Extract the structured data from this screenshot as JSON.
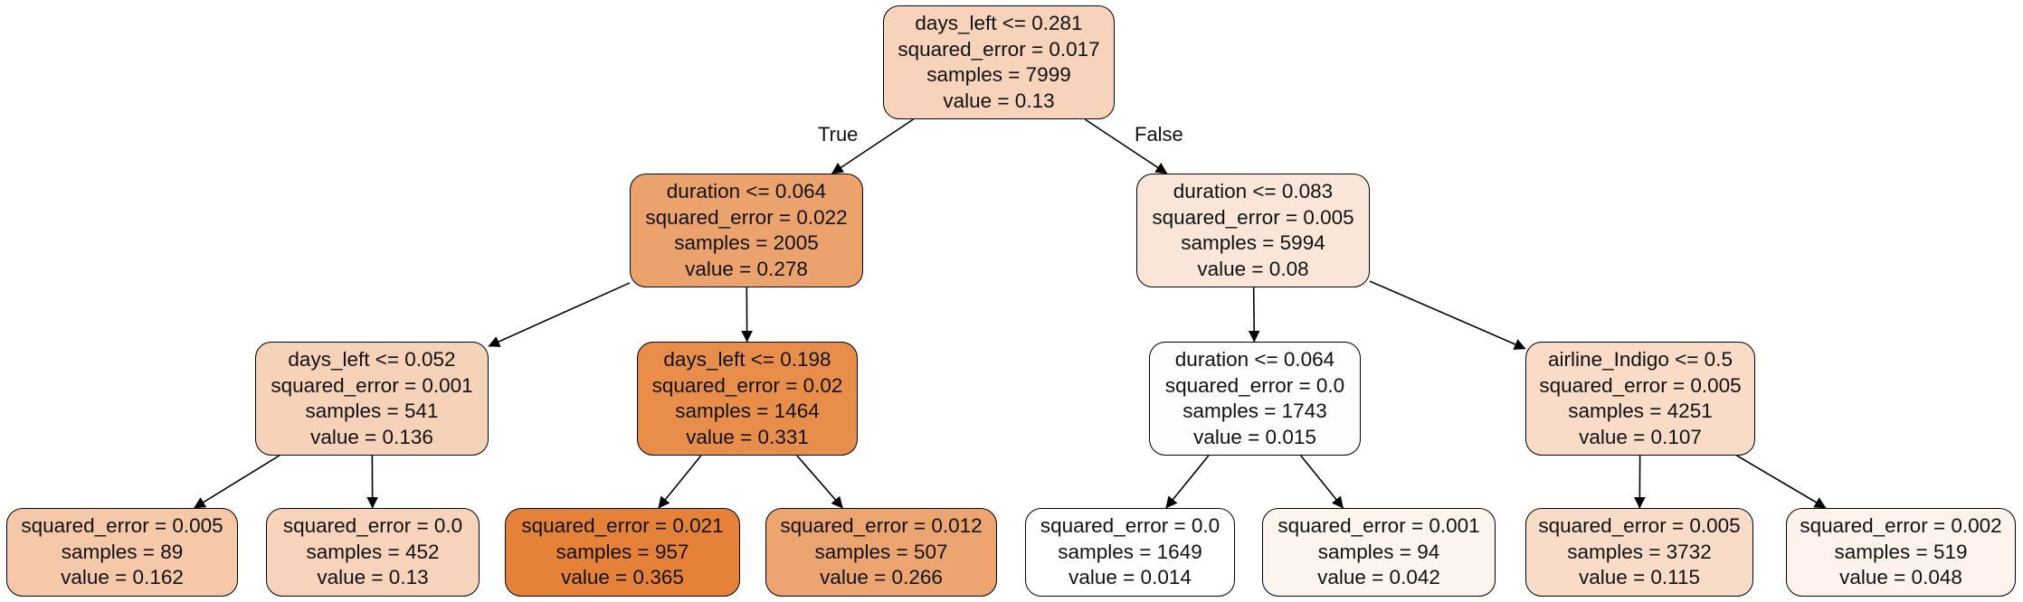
{
  "nodes": [
    {
      "id": "n0",
      "fill": "#f6d3ba",
      "lines": [
        "days_left <= 0.281",
        "squared_error = 0.017",
        "samples = 7999",
        "value = 0.13"
      ]
    },
    {
      "id": "n1",
      "fill": "#eca26c",
      "lines": [
        "duration <= 0.064",
        "squared_error = 0.022",
        "samples = 2005",
        "value = 0.278"
      ]
    },
    {
      "id": "n2",
      "fill": "#fae6d8",
      "lines": [
        "duration <= 0.083",
        "squared_error = 0.005",
        "samples = 5994",
        "value = 0.08"
      ]
    },
    {
      "id": "n3",
      "fill": "#f6d2b8",
      "lines": [
        "days_left <= 0.052",
        "squared_error = 0.001",
        "samples = 541",
        "value = 0.136"
      ]
    },
    {
      "id": "n4",
      "fill": "#e98d4a",
      "lines": [
        "days_left <= 0.198",
        "squared_error = 0.02",
        "samples = 1464",
        "value = 0.331"
      ]
    },
    {
      "id": "n5",
      "fill": "#fefdfc",
      "lines": [
        "duration <= 0.064",
        "squared_error = 0.0",
        "samples = 1743",
        "value = 0.015"
      ]
    },
    {
      "id": "n6",
      "fill": "#f8dcc8",
      "lines": [
        "airline_Indigo <= 0.5",
        "squared_error = 0.005",
        "samples = 4251",
        "value = 0.107"
      ]
    },
    {
      "id": "n7",
      "fill": "#f4c8a8",
      "lines": [
        "squared_error = 0.005",
        "samples = 89",
        "value = 0.162"
      ]
    },
    {
      "id": "n8",
      "fill": "#f6d3ba",
      "lines": [
        "squared_error = 0.0",
        "samples = 452",
        "value = 0.13"
      ]
    },
    {
      "id": "n9",
      "fill": "#e58139",
      "lines": [
        "squared_error = 0.021",
        "samples = 957",
        "value = 0.365"
      ]
    },
    {
      "id": "n10",
      "fill": "#eca571",
      "lines": [
        "squared_error = 0.012",
        "samples = 507",
        "value = 0.266"
      ]
    },
    {
      "id": "n11",
      "fill": "#ffffff",
      "lines": [
        "squared_error = 0.0",
        "samples = 1649",
        "value = 0.014"
      ]
    },
    {
      "id": "n12",
      "fill": "#fdf4ee",
      "lines": [
        "squared_error = 0.001",
        "samples = 94",
        "value = 0.042"
      ]
    },
    {
      "id": "n13",
      "fill": "#f8dcc8",
      "lines": [
        "squared_error = 0.005",
        "samples = 3732",
        "value = 0.115"
      ]
    },
    {
      "id": "n14",
      "fill": "#fdf3ec",
      "lines": [
        "squared_error = 0.002",
        "samples = 519",
        "value = 0.048"
      ]
    }
  ],
  "edges": [
    {
      "from": "n0",
      "to": "n1",
      "label": "True"
    },
    {
      "from": "n0",
      "to": "n2",
      "label": "False"
    },
    {
      "from": "n1",
      "to": "n3"
    },
    {
      "from": "n1",
      "to": "n4"
    },
    {
      "from": "n2",
      "to": "n5"
    },
    {
      "from": "n2",
      "to": "n6"
    },
    {
      "from": "n3",
      "to": "n7"
    },
    {
      "from": "n3",
      "to": "n8"
    },
    {
      "from": "n4",
      "to": "n9"
    },
    {
      "from": "n4",
      "to": "n10"
    },
    {
      "from": "n5",
      "to": "n11"
    },
    {
      "from": "n5",
      "to": "n12"
    },
    {
      "from": "n6",
      "to": "n13"
    },
    {
      "from": "n6",
      "to": "n14"
    }
  ]
}
